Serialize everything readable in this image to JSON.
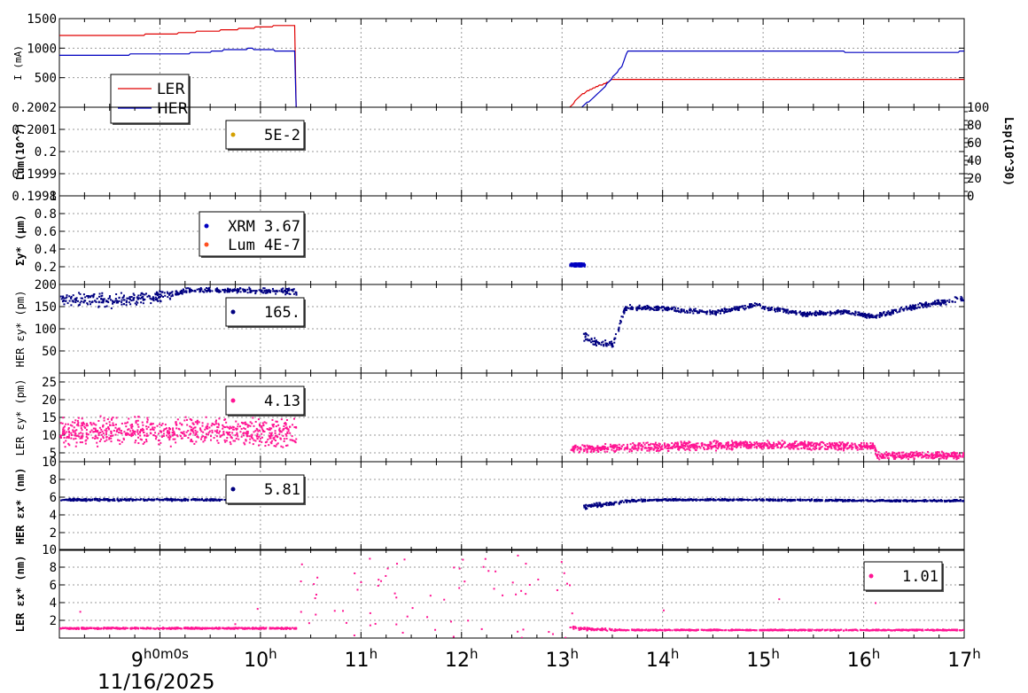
{
  "date_label": "11/16/2025",
  "first_tick_label": "9h0m0s",
  "x_ticks": [
    {
      "value": 9,
      "text": "9",
      "sup": "h0m0s"
    },
    {
      "value": 10,
      "text": "10",
      "sup": "h"
    },
    {
      "value": 11,
      "text": "11",
      "sup": "h"
    },
    {
      "value": 12,
      "text": "12",
      "sup": "h"
    },
    {
      "value": 13,
      "text": "13",
      "sup": "h"
    },
    {
      "value": 14,
      "text": "14",
      "sup": "h"
    },
    {
      "value": 15,
      "text": "15",
      "sup": "h"
    },
    {
      "value": 16,
      "text": "16",
      "sup": "h"
    },
    {
      "value": 17,
      "text": "17",
      "sup": "h"
    }
  ],
  "colors": {
    "ler": "#e00000",
    "her": "#0000c0",
    "navy": "#000080",
    "pink": "#ff1493",
    "gold": "#d4a000",
    "orange": "#ff5020"
  },
  "chart_data": [
    {
      "type": "line",
      "ylabel": "I (mA)",
      "ylim": [
        0,
        1500
      ],
      "yticks": [
        500,
        1000,
        1500
      ],
      "xlim_hours": [
        8,
        17
      ],
      "grid": true,
      "legend": {
        "placement": "bottom-left",
        "entries": [
          "LER",
          "HER"
        ]
      },
      "series": [
        {
          "name": "LER",
          "color": "#e00000",
          "x": [
            8.0,
            8.6,
            9.1,
            9.3,
            9.6,
            9.75,
            10.1,
            10.35,
            10.35,
            13.08,
            13.18,
            13.3,
            13.45,
            13.5,
            17.0
          ],
          "y": [
            1210,
            1215,
            1240,
            1270,
            1300,
            1320,
            1370,
            1385,
            0,
            0,
            200,
            320,
            420,
            470,
            470
          ]
        },
        {
          "name": "HER",
          "color": "#0000c0",
          "x": [
            8.0,
            8.5,
            9.0,
            9.4,
            9.7,
            9.9,
            10.35,
            10.35,
            13.2,
            13.4,
            13.6,
            13.65,
            15.8,
            15.9,
            17.0
          ],
          "y": [
            880,
            885,
            900,
            920,
            975,
            990,
            940,
            0,
            0,
            300,
            700,
            940,
            940,
            920,
            940
          ]
        }
      ]
    },
    {
      "type": "scatter",
      "ylabel": "Lum(10^?)",
      "ylim": [
        0.1998,
        0.2002
      ],
      "yticks": [
        "0.1998",
        "0.1999",
        "0.2",
        "0.2001",
        "0.2002"
      ],
      "y2label": "Lsp(10^30)",
      "y2lim": [
        0,
        100
      ],
      "y2ticks": [
        0,
        20,
        40,
        60,
        80,
        100
      ],
      "legend": {
        "placement": "top-left",
        "entries": [
          {
            "text": "5E-2",
            "color": "#d4a000"
          }
        ]
      },
      "series": []
    },
    {
      "type": "scatter",
      "ylabel": "Σy* (μm)",
      "ylim": [
        0,
        1
      ],
      "yticks": [
        "0.2",
        "0.4",
        "0.6",
        "0.8",
        "1"
      ],
      "legend": {
        "placement": "top-left",
        "entries": [
          {
            "text": "XRM 3.67",
            "color": "#0000c0"
          },
          {
            "text": "Lum 4E-7",
            "color": "#ff5020"
          }
        ]
      },
      "series": [
        {
          "name": "XRM",
          "color": "#0000c0",
          "x_range": [
            13.07,
            13.22
          ],
          "y_center": 0.23,
          "y_spread": 0.02
        }
      ]
    },
    {
      "type": "scatter",
      "ylabel": "HER εy* (pm)",
      "ylim": [
        0,
        200
      ],
      "yticks": [
        "50",
        "100",
        "150",
        "200"
      ],
      "legend": {
        "placement": "top-left",
        "entries": [
          {
            "text": "165.",
            "color": "#000080"
          }
        ]
      },
      "series": [
        {
          "name": "HER",
          "color": "#000080",
          "x": [
            8.0,
            8.5,
            9.0,
            9.3,
            9.6,
            10.0,
            10.35,
            13.2,
            13.35,
            13.5,
            13.62,
            14.0,
            14.5,
            14.9,
            15.4,
            15.8,
            16.1,
            16.5,
            17.0
          ],
          "y": [
            170,
            165,
            175,
            190,
            188,
            188,
            185,
            85,
            70,
            65,
            150,
            148,
            138,
            155,
            135,
            140,
            130,
            152,
            170
          ],
          "spread": [
            15,
            20,
            15,
            6,
            6,
            8,
            8,
            12,
            10,
            8,
            8,
            6,
            6,
            6,
            6,
            6,
            6,
            7,
            8
          ]
        }
      ]
    },
    {
      "type": "scatter",
      "ylabel": "LER εy* (pm)",
      "ylim": [
        2.5,
        27.5
      ],
      "yticks": [
        "5",
        "10",
        "15",
        "20",
        "25"
      ],
      "legend": {
        "placement": "top-left",
        "entries": [
          {
            "text": "4.13",
            "color": "#ff1493"
          }
        ]
      },
      "series": [
        {
          "name": "LER",
          "color": "#ff1493",
          "x": [
            8.0,
            9.0,
            10.0,
            10.35,
            13.08,
            14.0,
            15.0,
            16.1,
            16.12,
            17.0
          ],
          "y": [
            11,
            11.5,
            11,
            11,
            6.5,
            7,
            7.5,
            7,
            4.5,
            4.5
          ],
          "spread": [
            4.5,
            4.5,
            4.5,
            4.5,
            1.2,
            1.5,
            1.5,
            1.2,
            1.2,
            1.2
          ]
        }
      ]
    },
    {
      "type": "scatter",
      "ylabel": "HER εx* (nm)",
      "ylim": [
        0,
        10
      ],
      "yticks": [
        "2",
        "4",
        "6",
        "8",
        "10"
      ],
      "legend": {
        "placement": "top-left",
        "entries": [
          {
            "text": "5.81",
            "color": "#000080"
          }
        ]
      },
      "series": [
        {
          "name": "HER",
          "color": "#000080",
          "x": [
            8.0,
            9.0,
            10.0,
            10.35,
            13.2,
            13.4,
            13.7,
            14.0,
            15.0,
            16.0,
            17.0
          ],
          "y": [
            5.8,
            5.8,
            5.8,
            5.8,
            5.0,
            5.3,
            5.7,
            5.8,
            5.8,
            5.7,
            5.7
          ],
          "spread": [
            0.15,
            0.15,
            0.15,
            0.15,
            0.3,
            0.3,
            0.15,
            0.12,
            0.12,
            0.12,
            0.12
          ]
        }
      ]
    },
    {
      "type": "scatter",
      "ylabel": "LER εx* (nm)",
      "ylim": [
        0,
        10
      ],
      "yticks": [
        "2",
        "4",
        "6",
        "8",
        "10"
      ],
      "legend": {
        "placement": "top-right",
        "entries": [
          {
            "text": "1.01",
            "color": "#ff1493"
          }
        ]
      },
      "series": [
        {
          "name": "LER",
          "color": "#ff1493",
          "x": [
            8.0,
            10.35,
            13.05,
            13.3,
            13.6,
            14.0,
            17.0
          ],
          "y": [
            1.2,
            1.2,
            1.3,
            1.1,
            1.0,
            1.0,
            1.0
          ],
          "spread": [
            0.1,
            0.1,
            0.2,
            0.2,
            0.1,
            0.08,
            0.08
          ],
          "outliers_range": [
            10.35,
            13.1
          ]
        }
      ]
    }
  ]
}
